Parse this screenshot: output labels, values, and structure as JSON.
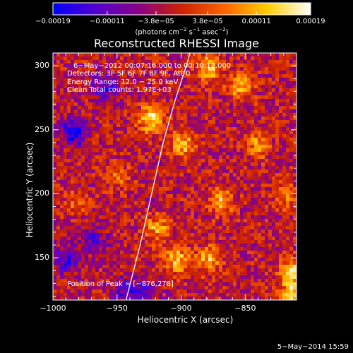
{
  "chart_data": {
    "type": "heatmap",
    "title": "Reconstructed RHESSI Image",
    "xlabel": "Heliocentric X (arcsec)",
    "ylabel": "Heliocentric Y (arcsec)",
    "xlim": [
      -1000,
      -810
    ],
    "ylim": [
      117,
      310
    ],
    "xticks": [
      -1000,
      -950,
      -900,
      -850
    ],
    "xtick_labels": [
      "−1000",
      "−950",
      "−900",
      "−850"
    ],
    "yticks": [
      150,
      200,
      250,
      300
    ],
    "ytick_labels": [
      "150",
      "200",
      "250",
      "300"
    ],
    "colorbar": {
      "min": -0.00019,
      "max": 0.00019,
      "ticks": [
        -0.00019,
        -0.00011,
        -3.8e-05,
        3.8e-05,
        0.00011,
        0.00019
      ],
      "tick_labels": [
        "−0.00019",
        "−0.00011",
        "−3.8e−05",
        "3.8e−05",
        "0.00011",
        "0.00019"
      ],
      "unit_text": "(photons cm",
      "unit_exp1": "−2",
      "unit_mid": " s",
      "unit_exp2": "−1",
      "unit_end": " asec",
      "unit_exp3": "−2",
      "unit_close": ")",
      "colors": [
        "#0000ff",
        "#5500cc",
        "#880088",
        "#cc2200",
        "#ff6600",
        "#ffcc00",
        "#ffffff"
      ]
    },
    "annotations": {
      "time": "6−May−2012 00:07:16.000 to 00:10:12.000",
      "detectors": "Detectors: 3F 5F 6F 7F 8F 9F, Att 0",
      "energy": "Energy Range: 12.0 − 25.0 keV",
      "clean": "Clean     Total counts: 1.97E+03",
      "peak": "Position of Peak = [−876,278]"
    },
    "peak_position": [
      -876,
      278
    ],
    "hot_spots": [
      {
        "x": -925,
        "y": 260,
        "v": 0.00019
      },
      {
        "x": -900,
        "y": 240,
        "v": 0.00016
      },
      {
        "x": -880,
        "y": 300,
        "v": 0.00017
      },
      {
        "x": -855,
        "y": 285,
        "v": 0.00015
      },
      {
        "x": -840,
        "y": 240,
        "v": 0.00013
      },
      {
        "x": -870,
        "y": 195,
        "v": 0.00015
      },
      {
        "x": -920,
        "y": 175,
        "v": 0.00013
      },
      {
        "x": -905,
        "y": 150,
        "v": 0.00016
      },
      {
        "x": -880,
        "y": 150,
        "v": 0.00014
      },
      {
        "x": -815,
        "y": 140,
        "v": 0.00018
      },
      {
        "x": -950,
        "y": 215,
        "v": 8e-05
      },
      {
        "x": -820,
        "y": 200,
        "v": 0.0001
      },
      {
        "x": -815,
        "y": 120,
        "v": 0.00019
      },
      {
        "x": -985,
        "y": 195,
        "v": 6e-05
      }
    ],
    "cold_spots": [
      {
        "x": -985,
        "y": 250,
        "v": -0.00019
      },
      {
        "x": -960,
        "y": 285,
        "v": -0.00013
      },
      {
        "x": -990,
        "y": 150,
        "v": -0.00013
      },
      {
        "x": -970,
        "y": 165,
        "v": -0.0001
      },
      {
        "x": -945,
        "y": 125,
        "v": -0.00011
      },
      {
        "x": -930,
        "y": 125,
        "v": -0.0001
      }
    ],
    "limb_curve": [
      {
        "x": -943,
        "y": 117
      },
      {
        "x": -932,
        "y": 160
      },
      {
        "x": -923,
        "y": 200
      },
      {
        "x": -914,
        "y": 240
      },
      {
        "x": -905,
        "y": 272
      },
      {
        "x": -896,
        "y": 300
      },
      {
        "x": -893,
        "y": 310
      }
    ]
  },
  "footer": {
    "date": "5−May−2014 15:59"
  }
}
